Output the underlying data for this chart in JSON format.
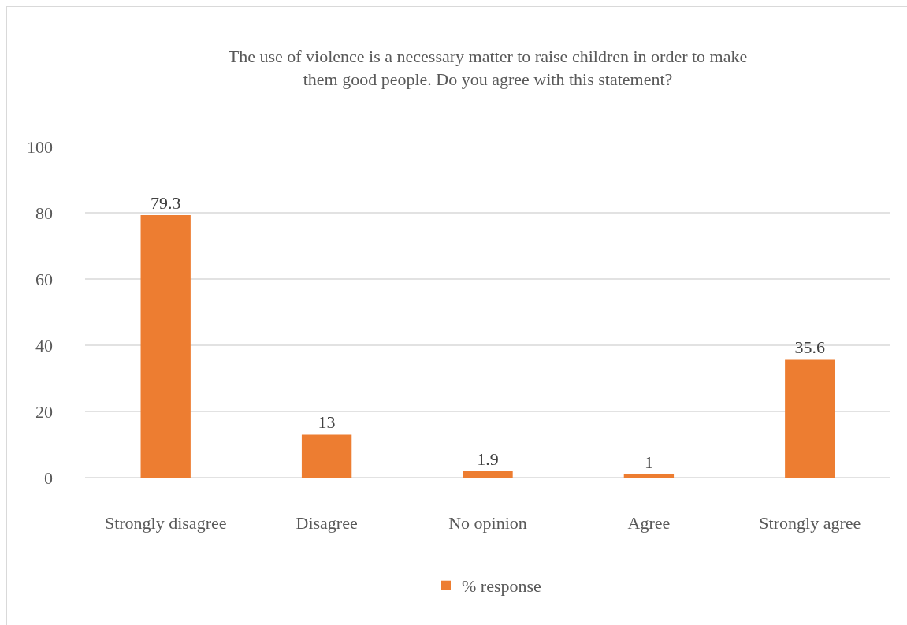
{
  "chart_data": {
    "type": "bar",
    "title": "The use of violence is a necessary matter to raise children in order to make them good people. Do you agree with this statement?",
    "categories": [
      "Strongly disagree",
      "Disagree",
      "No opinion",
      "Agree",
      "Strongly agree"
    ],
    "series": [
      {
        "name": "% response",
        "color": "#ed7d31",
        "values": [
          79.3,
          13,
          1.9,
          1,
          35.6
        ]
      }
    ],
    "ylim": [
      0,
      100
    ],
    "yticks": [
      0,
      20,
      40,
      60,
      80,
      100
    ],
    "grid": "y",
    "legend": "bottom",
    "data_labels": true
  }
}
